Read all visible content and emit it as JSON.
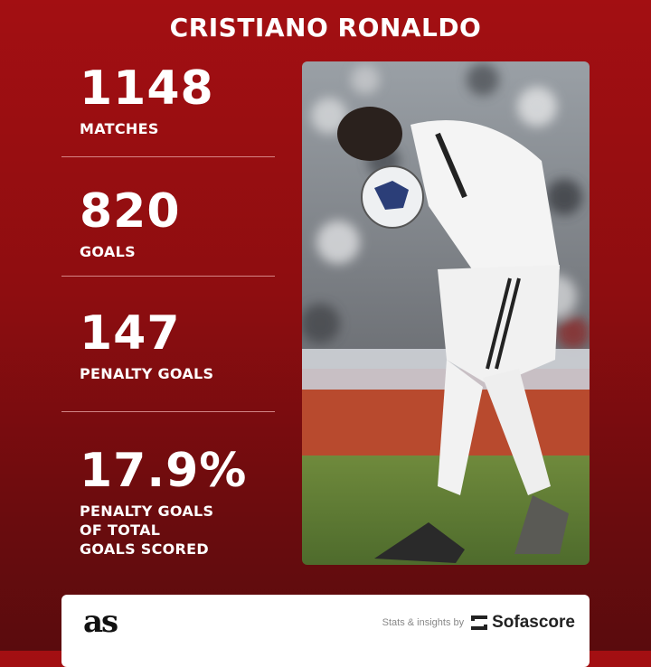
{
  "title": "CRISTIANO RONALDO",
  "stats": [
    {
      "value": "1148",
      "label": "MATCHES"
    },
    {
      "value": "820",
      "label": "GOALS"
    },
    {
      "value": "147",
      "label": "PENALTY GOALS"
    },
    {
      "value": "17.9%",
      "label_lines": [
        "PENALTY GOALS",
        "OF TOTAL",
        "GOALS SCORED"
      ]
    }
  ],
  "footer": {
    "publisher_logo": "as",
    "credit_text": "Stats & insights by",
    "partner": "Sofascore"
  },
  "colors": {
    "background_top": "#a30f12",
    "background_bottom": "#5a0b0d"
  }
}
